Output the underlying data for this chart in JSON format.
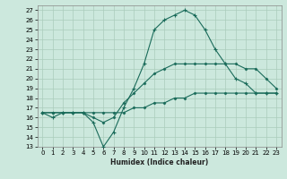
{
  "xlabel": "Humidex (Indice chaleur)",
  "background_color": "#cce8dd",
  "grid_color": "#aaccbb",
  "line_color": "#1a6b5a",
  "xlim": [
    -0.5,
    23.5
  ],
  "ylim": [
    13,
    27.5
  ],
  "xticks": [
    0,
    1,
    2,
    3,
    4,
    5,
    6,
    7,
    8,
    9,
    10,
    11,
    12,
    13,
    14,
    15,
    16,
    17,
    18,
    19,
    20,
    21,
    22,
    23
  ],
  "yticks": [
    13,
    14,
    15,
    16,
    17,
    18,
    19,
    20,
    21,
    22,
    23,
    24,
    25,
    26,
    27
  ],
  "line1_x": [
    0,
    1,
    2,
    3,
    4,
    5,
    6,
    7,
    8,
    9,
    10,
    11,
    12,
    13,
    14,
    15,
    16,
    17,
    18,
    19,
    20,
    21,
    22,
    23
  ],
  "line1_y": [
    16.5,
    16.0,
    16.5,
    16.5,
    16.5,
    15.5,
    13.0,
    14.5,
    17.0,
    19.0,
    21.5,
    25.0,
    26.0,
    26.5,
    27.0,
    26.5,
    25.0,
    23.0,
    21.5,
    20.0,
    19.5,
    18.5,
    18.5,
    18.5
  ],
  "line2_x": [
    0,
    1,
    2,
    3,
    4,
    5,
    6,
    7,
    8,
    9,
    10,
    11,
    12,
    13,
    14,
    15,
    16,
    17,
    18,
    19,
    20,
    21,
    22,
    23
  ],
  "line2_y": [
    16.5,
    16.5,
    16.5,
    16.5,
    16.5,
    16.0,
    15.5,
    16.0,
    17.5,
    18.5,
    19.5,
    20.5,
    21.0,
    21.5,
    21.5,
    21.5,
    21.5,
    21.5,
    21.5,
    21.5,
    21.0,
    21.0,
    20.0,
    19.0
  ],
  "line3_x": [
    0,
    1,
    2,
    3,
    4,
    5,
    6,
    7,
    8,
    9,
    10,
    11,
    12,
    13,
    14,
    15,
    16,
    17,
    18,
    19,
    20,
    21,
    22,
    23
  ],
  "line3_y": [
    16.5,
    16.5,
    16.5,
    16.5,
    16.5,
    16.5,
    16.5,
    16.5,
    16.5,
    17.0,
    17.0,
    17.5,
    17.5,
    18.0,
    18.0,
    18.5,
    18.5,
    18.5,
    18.5,
    18.5,
    18.5,
    18.5,
    18.5,
    18.5
  ]
}
